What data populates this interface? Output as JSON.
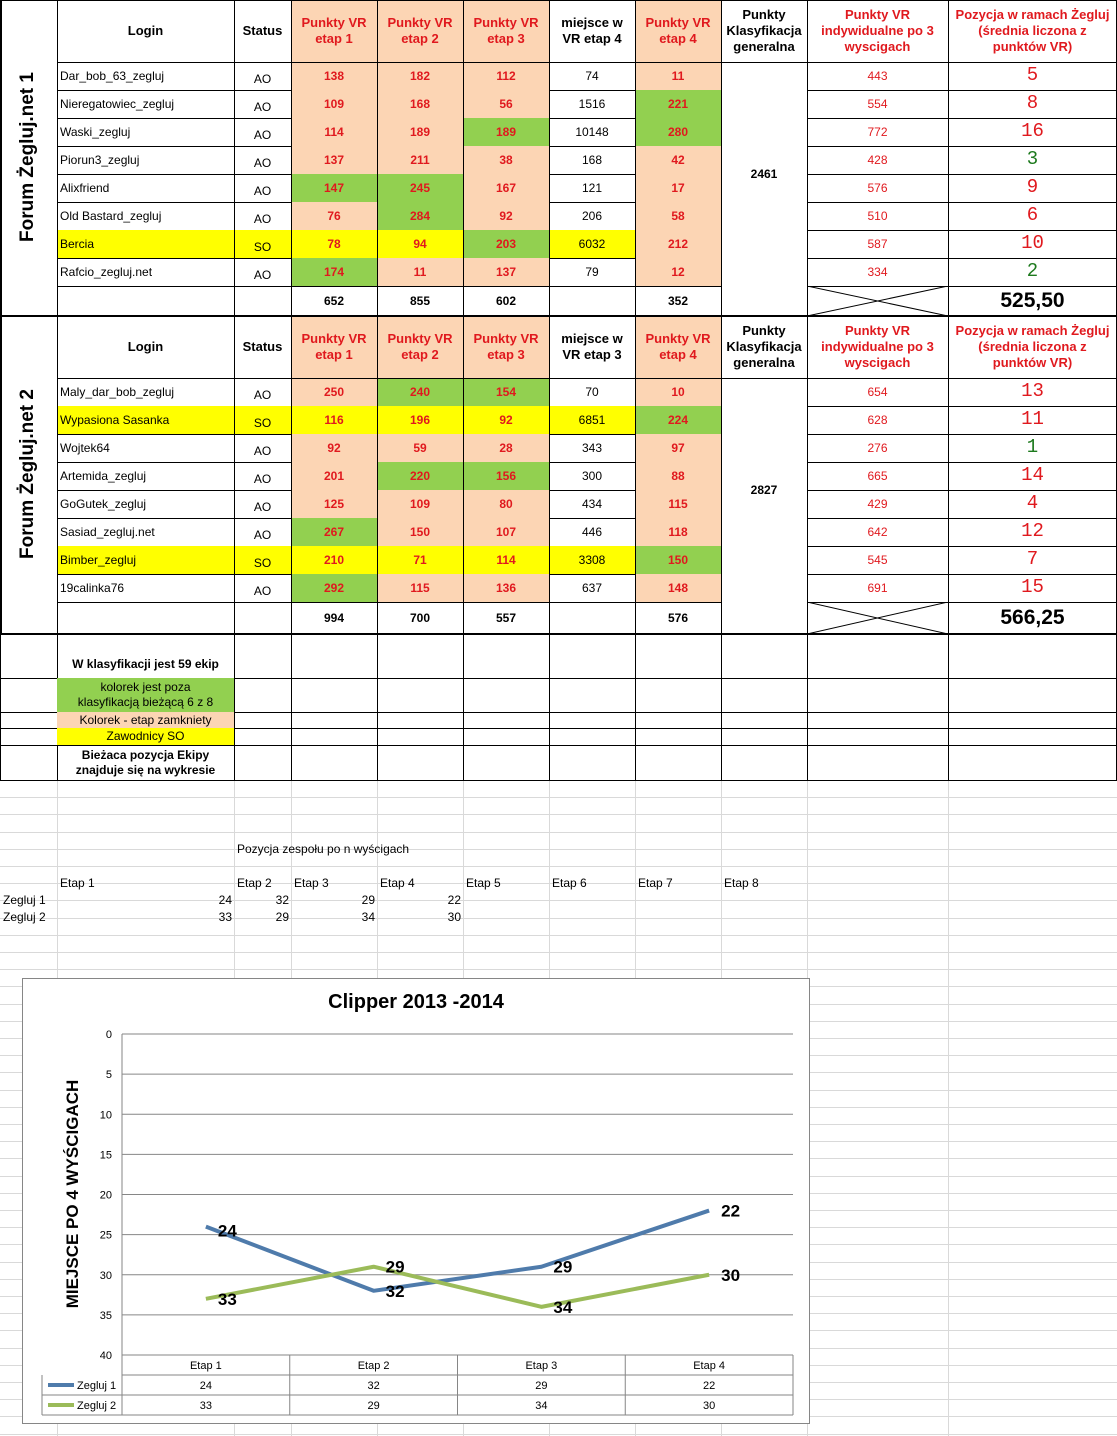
{
  "teams": [
    {
      "title": "Forum Żegluj.net 1",
      "headers": [
        "Login",
        "Status",
        "Punkty VR\netap 1",
        "Punkty VR\netap 2",
        "Punkty VR\netap 3",
        "miejsce w\nVR etap 4",
        "Punkty VR\netap 4",
        "Punkty\nKlasyfikacja\ngeneralna",
        "Punkty VR\nindywidualne po 3\nwyscigach",
        "Pozycja w ramach Żegluj\n(średnia liczona z\npunktów VR)"
      ],
      "general_points": "2461",
      "rows": [
        {
          "login": "Dar_bob_63_zegluj",
          "status": "AO",
          "e1": "138",
          "e2": "182",
          "e3": "112",
          "m4": "74",
          "e4": "11",
          "ind": "443",
          "pos": "5",
          "hl": [
            "p",
            "p",
            "p",
            "w",
            "p"
          ]
        },
        {
          "login": "Nieregatowiec_zegluj",
          "status": "AO",
          "e1": "109",
          "e2": "168",
          "e3": "56",
          "m4": "1516",
          "e4": "221",
          "ind": "554",
          "pos": "8",
          "hl": [
            "p",
            "p",
            "p",
            "w",
            "g"
          ]
        },
        {
          "login": "Waski_zegluj",
          "status": "AO",
          "e1": "114",
          "e2": "189",
          "e3": "189",
          "m4": "10148",
          "e4": "280",
          "ind": "772",
          "pos": "16",
          "hl": [
            "p",
            "p",
            "g",
            "w",
            "g"
          ]
        },
        {
          "login": "Piorun3_zegluj",
          "status": "AO",
          "e1": "137",
          "e2": "211",
          "e3": "38",
          "m4": "168",
          "e4": "42",
          "ind": "428",
          "pos": "3",
          "hl": [
            "p",
            "p",
            "p",
            "w",
            "p"
          ]
        },
        {
          "login": "Alixfriend",
          "status": "AO",
          "e1": "147",
          "e2": "245",
          "e3": "167",
          "m4": "121",
          "e4": "17",
          "ind": "576",
          "pos": "9",
          "hl": [
            "g",
            "g",
            "p",
            "w",
            "p"
          ]
        },
        {
          "login": "Old Bastard_zegluj",
          "status": "AO",
          "e1": "76",
          "e2": "284",
          "e3": "92",
          "m4": "206",
          "e4": "58",
          "ind": "510",
          "pos": "6",
          "hl": [
            "p",
            "g",
            "p",
            "w",
            "p"
          ]
        },
        {
          "login": "Bercia",
          "status": "SO",
          "e1": "78",
          "e2": "94",
          "e3": "203",
          "m4": "6032",
          "e4": "212",
          "ind": "587",
          "pos": "10",
          "hl": [
            "y",
            "y",
            "g",
            "y",
            "p"
          ],
          "yellow": true
        },
        {
          "login": "Rafcio_zegluj.net",
          "status": "AO",
          "e1": "174",
          "e2": "11",
          "e3": "137",
          "m4": "79",
          "e4": "12",
          "ind": "334",
          "pos": "2",
          "hl": [
            "g",
            "p",
            "p",
            "w",
            "p"
          ]
        }
      ],
      "totals": {
        "e1": "652",
        "e2": "855",
        "e3": "602",
        "e4": "352",
        "avg": "525,50"
      }
    },
    {
      "title": "Forum Żegluj.net 2",
      "headers": [
        "Login",
        "Status",
        "Punkty VR\netap 1",
        "Punkty VR\netap 2",
        "Punkty VR\netap 3",
        "miejsce w\nVR etap 3",
        "Punkty VR\netap 4",
        "Punkty\nKlasyfikacja\ngeneralna",
        "Punkty VR\nindywidualne po 3\nwyscigach",
        "Pozycja w ramach Żegluj\n(średnia liczona z\npunktów VR)"
      ],
      "general_points": "2827",
      "rows": [
        {
          "login": "Maly_dar_bob_zegluj",
          "status": "AO",
          "e1": "250",
          "e2": "240",
          "e3": "154",
          "m4": "70",
          "e4": "10",
          "ind": "654",
          "pos": "13",
          "hl": [
            "p",
            "g",
            "g",
            "w",
            "p"
          ]
        },
        {
          "login": "Wypasiona Sasanka",
          "status": "SO",
          "e1": "116",
          "e2": "196",
          "e3": "92",
          "m4": "6851",
          "e4": "224",
          "ind": "628",
          "pos": "11",
          "hl": [
            "y",
            "y",
            "y",
            "y",
            "g"
          ],
          "yellow": true
        },
        {
          "login": "Wojtek64",
          "status": "AO",
          "e1": "92",
          "e2": "59",
          "e3": "28",
          "m4": "343",
          "e4": "97",
          "ind": "276",
          "pos": "1",
          "hl": [
            "p",
            "p",
            "p",
            "w",
            "p"
          ]
        },
        {
          "login": "Artemida_zegluj",
          "status": "AO",
          "e1": "201",
          "e2": "220",
          "e3": "156",
          "m4": "300",
          "e4": "88",
          "ind": "665",
          "pos": "14",
          "hl": [
            "p",
            "g",
            "g",
            "w",
            "p"
          ]
        },
        {
          "login": "GoGutek_zegluj",
          "status": "AO",
          "e1": "125",
          "e2": "109",
          "e3": "80",
          "m4": "434",
          "e4": "115",
          "ind": "429",
          "pos": "4",
          "hl": [
            "p",
            "p",
            "p",
            "w",
            "p"
          ]
        },
        {
          "login": "Sasiad_zegluj.net",
          "status": "AO",
          "e1": "267",
          "e2": "150",
          "e3": "107",
          "m4": "446",
          "e4": "118",
          "ind": "642",
          "pos": "12",
          "hl": [
            "g",
            "p",
            "p",
            "w",
            "p"
          ]
        },
        {
          "login": "Bimber_zegluj",
          "status": "SO",
          "e1": "210",
          "e2": "71",
          "e3": "114",
          "m4": "3308",
          "e4": "150",
          "ind": "545",
          "pos": "7",
          "hl": [
            "y",
            "y",
            "y",
            "y",
            "g"
          ],
          "yellow": true
        },
        {
          "login": "19calinka76",
          "status": "AO",
          "e1": "292",
          "e2": "115",
          "e3": "136",
          "m4": "637",
          "e4": "148",
          "ind": "691",
          "pos": "15",
          "hl": [
            "g",
            "p",
            "p",
            "w",
            "p"
          ]
        }
      ],
      "totals": {
        "e1": "994",
        "e2": "700",
        "e3": "557",
        "e4": "576",
        "avg": "566,25"
      }
    }
  ],
  "legend": {
    "heading": "W klasyfikacji jest 59 ekip",
    "green": "kolorek jest  poza\nklasyfikacją bieżącą 6 z 8",
    "peach": "Kolorek - etap zamkniety",
    "yellow": "Zawodnicy SO",
    "note": "Bieżaca pozycja Ekipy\nznajduje się na wykresie"
  },
  "position_table": {
    "caption": "Pozycja zespołu po n wyścigach",
    "stages": [
      "Etap 1",
      "Etap 2",
      "Etap 3",
      "Etap 4",
      "Etap 5",
      "Etap 6",
      "Etap 7",
      "Etap 8"
    ],
    "rows": [
      {
        "name": "Zegluj 1",
        "values": [
          "24",
          "32",
          "29",
          "22"
        ]
      },
      {
        "name": "Zegluj 2",
        "values": [
          "33",
          "29",
          "34",
          "30"
        ]
      }
    ]
  },
  "colors": {
    "green": "#92d050",
    "peach": "#fcd5b4",
    "yellow": "#ffff00",
    "series1": "#4f7bab",
    "series2": "#9bbb59",
    "red": "#e0191e"
  },
  "chart_data": {
    "type": "line",
    "title": "Clipper 2013 -2014",
    "ylabel": "MIEJSCE PO 4 WYŚCIGACH",
    "xlabel": "",
    "categories": [
      "Etap 1",
      "Etap 2",
      "Etap 3",
      "Etap 4"
    ],
    "ylim": [
      0,
      40
    ],
    "y_reversed": true,
    "yticks": [
      0,
      5,
      10,
      15,
      20,
      25,
      30,
      35,
      40
    ],
    "grid": true,
    "legend": "data-table-bottom",
    "series": [
      {
        "name": "Zegluj 1",
        "values": [
          24,
          32,
          29,
          22
        ],
        "color": "#4f7bab"
      },
      {
        "name": "Zegluj 2",
        "values": [
          33,
          29,
          34,
          30
        ],
        "color": "#9bbb59"
      }
    ]
  }
}
